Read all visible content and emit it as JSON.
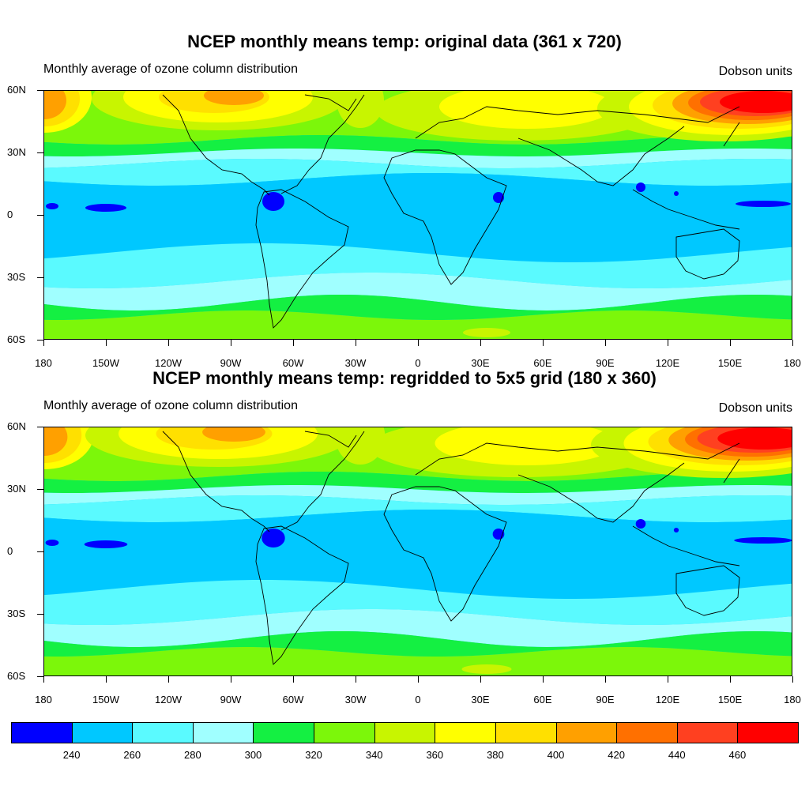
{
  "panels": [
    {
      "title": "NCEP monthly means temp: original data (361 x 720)",
      "subtitle_left": "Monthly average of ozone column distribution",
      "subtitle_right": "Dobson units"
    },
    {
      "title": "NCEP monthly means temp: regridded to 5x5 grid (180 x 360)",
      "subtitle_left": "Monthly average of ozone column distribution",
      "subtitle_right": "Dobson units"
    }
  ],
  "lon_labels": [
    "180",
    "150W",
    "120W",
    "90W",
    "60W",
    "30W",
    "0",
    "30E",
    "60E",
    "90E",
    "120E",
    "150E",
    "180"
  ],
  "lat_labels": [
    "60N",
    "30N",
    "0",
    "30S",
    "60S"
  ],
  "colorbar": {
    "colors": [
      "#0000ff",
      "#00c8ff",
      "#5afaff",
      "#a0ffff",
      "#14f042",
      "#7cf70a",
      "#c8f500",
      "#ffff00",
      "#ffe000",
      "#ffa000",
      "#ff7000",
      "#ff4020",
      "#ff0000"
    ],
    "labels": [
      "240",
      "260",
      "280",
      "300",
      "320",
      "340",
      "360",
      "380",
      "400",
      "420",
      "440",
      "460"
    ]
  }
}
